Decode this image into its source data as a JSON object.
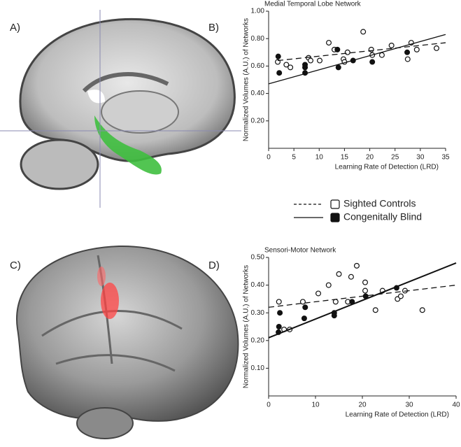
{
  "panels": {
    "labels": [
      "A)",
      "B)",
      "C)",
      "D)"
    ]
  },
  "chart_data": [
    {
      "type": "scatter",
      "title": "Medial Temporal Lobe Network",
      "x_label": "Learning Rate of Detection (LRD)",
      "y_label": "Normalized Volumes (A.U.) of Networks",
      "xlim": [
        0,
        35
      ],
      "ylim": [
        0,
        1.0
      ],
      "xticks": [
        0,
        5,
        10,
        15,
        20,
        25,
        30,
        35
      ],
      "yticks": [
        {
          "value": 0.2,
          "label": "0.20"
        },
        {
          "value": 0.4,
          "label": "0.40"
        },
        {
          "value": 0.6,
          "label": "0.60"
        },
        {
          "value": 0.8,
          "label": "0.80"
        },
        {
          "value": 1.0,
          "label": "1.00"
        }
      ],
      "series": [
        {
          "name": "Sighted Controls",
          "color": "#ffffff",
          "line_style": "dashed",
          "x": [
            1.8,
            3.5,
            4.3,
            7.9,
            8.3,
            10.1,
            11.9,
            13,
            14.8,
            15,
            15.6,
            18.7,
            20.3,
            20.5,
            22.4,
            24.3,
            27.5,
            28.2,
            29.3,
            33.2
          ],
          "values": [
            0.63,
            0.61,
            0.59,
            0.66,
            0.64,
            0.64,
            0.77,
            0.72,
            0.65,
            0.63,
            0.7,
            0.85,
            0.72,
            0.68,
            0.68,
            0.75,
            0.65,
            0.77,
            0.72,
            0.73
          ],
          "fit": {
            "x": [
              1.8,
              35
            ],
            "values": [
              0.64,
              0.77
            ]
          }
        },
        {
          "name": "Congenitally Blind",
          "color": "#111111",
          "line_style": "solid",
          "x": [
            1.9,
            2.1,
            7.2,
            7.2,
            7.2,
            13.6,
            13.8,
            16.7,
            20.5,
            27.4
          ],
          "values": [
            0.67,
            0.55,
            0.61,
            0.59,
            0.55,
            0.72,
            0.59,
            0.64,
            0.63,
            0.7
          ],
          "fit": {
            "x": [
              0,
              35
            ],
            "values": [
              0.47,
              0.83
            ]
          }
        }
      ]
    },
    {
      "type": "scatter",
      "title": "Sensori-Motor Network",
      "x_label": "Learning Rate of Detection (LRD)",
      "y_label": "Normalized Volumes (A.U.) of Networks",
      "xlim": [
        0,
        40
      ],
      "ylim": [
        0,
        0.5
      ],
      "xticks": [
        0,
        10,
        20,
        30,
        40
      ],
      "yticks": [
        {
          "value": 0.1,
          "label": "0.10"
        },
        {
          "value": 0.2,
          "label": "0.20"
        },
        {
          "value": 0.3,
          "label": "0.30"
        },
        {
          "value": 0.4,
          "label": "0.40"
        },
        {
          "value": 0.5,
          "label": "0.50"
        }
      ],
      "series": [
        {
          "color": "#ffffff",
          "line_style": "dashed",
          "x": [
            2.2,
            3.3,
            4.5,
            7.3,
            10.6,
            12.8,
            14.3,
            15,
            16.9,
            17.6,
            18.8,
            20.6,
            20.6,
            22.8,
            24.3,
            27.5,
            28.2,
            29.1,
            32.8
          ],
          "values": [
            0.34,
            0.24,
            0.24,
            0.34,
            0.37,
            0.4,
            0.34,
            0.44,
            0.34,
            0.43,
            0.47,
            0.41,
            0.38,
            0.31,
            0.38,
            0.35,
            0.36,
            0.38,
            0.31
          ],
          "fit": {
            "x": [
              0,
              40
            ],
            "values": [
              0.32,
              0.4
            ]
          }
        },
        {
          "color": "#111111",
          "line_style": "solid",
          "x": [
            2.4,
            2.2,
            2.1,
            7.6,
            7.8,
            14,
            14,
            17.8,
            20.7,
            27.3
          ],
          "values": [
            0.3,
            0.25,
            0.23,
            0.28,
            0.32,
            0.3,
            0.29,
            0.34,
            0.36,
            0.39
          ],
          "fit": {
            "x": [
              0,
              40
            ],
            "values": [
              0.21,
              0.48
            ]
          }
        }
      ]
    }
  ]
}
